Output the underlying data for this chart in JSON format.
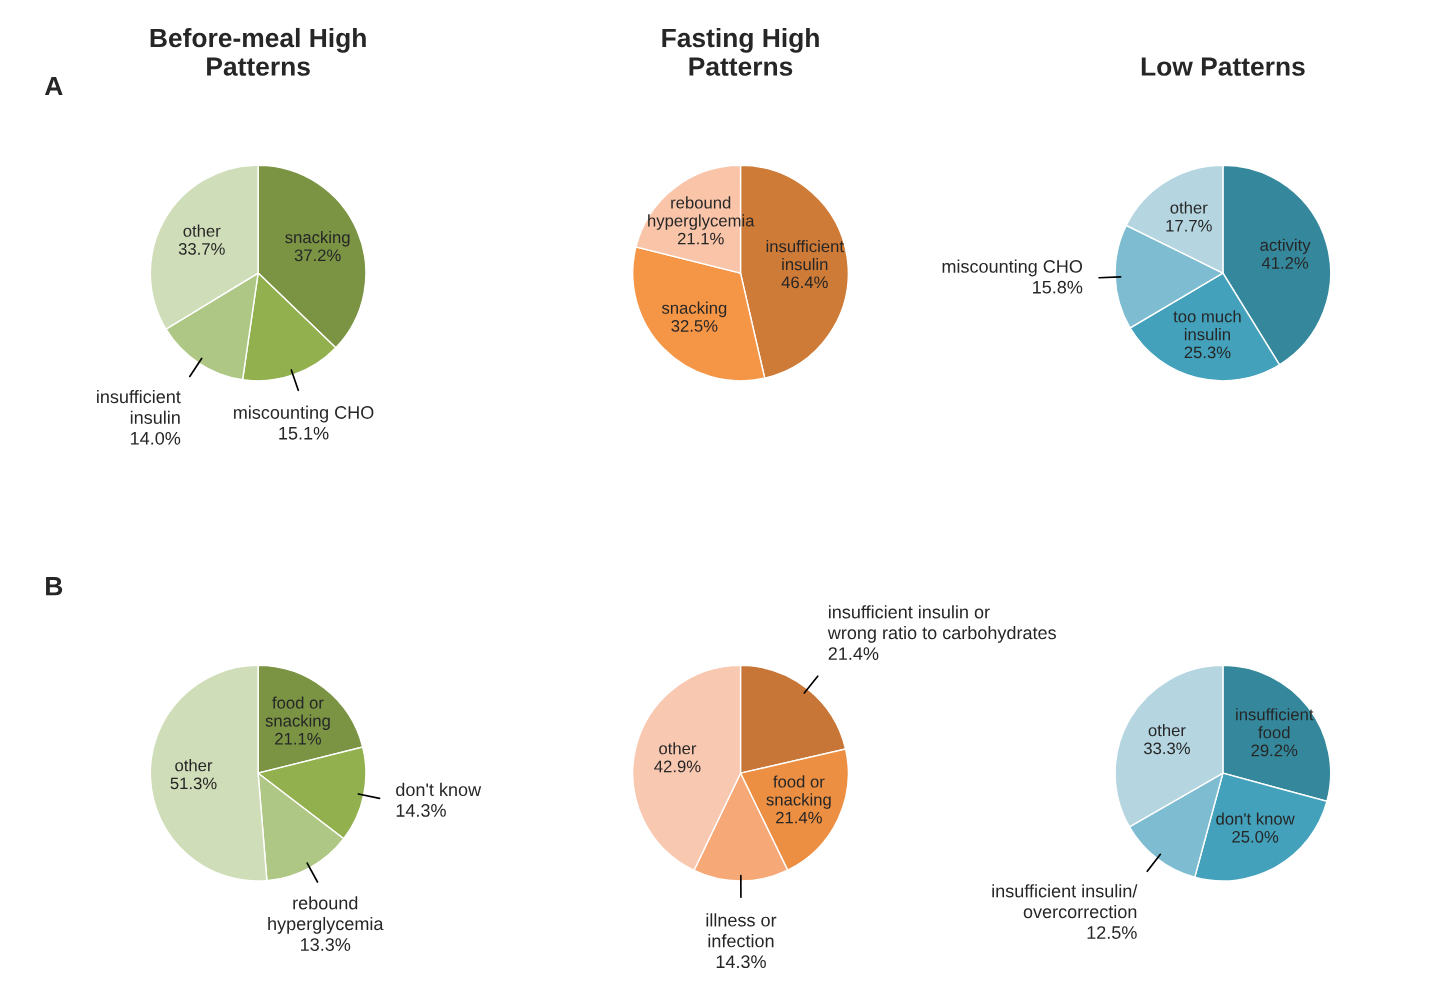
{
  "chart_data": [
    {
      "type": "pie",
      "title": "Before-meal High\nPatterns",
      "annotations": [
        "A"
      ],
      "categories": [
        "snacking",
        "miscounting CHO",
        "insufficient\ninsulin",
        "other"
      ],
      "values": [
        37.2,
        15.1,
        14.0,
        33.7
      ],
      "value_labels": [
        "37.2%",
        "15.1%",
        "14.0%",
        "33.7%"
      ],
      "colors": [
        "#7a9444",
        "#92b04e",
        "#afc785",
        "#d0ddb9"
      ]
    },
    {
      "type": "pie",
      "title": "Fasting High\nPatterns",
      "categories": [
        "insufficient\ninsulin",
        "snacking",
        "rebound\nhyperglycemia"
      ],
      "values": [
        46.4,
        32.5,
        21.1
      ],
      "value_labels": [
        "46.4%",
        "32.5%",
        "21.1%"
      ],
      "colors": [
        "#cf7b38",
        "#f59546",
        "#f9c4a8"
      ]
    },
    {
      "type": "pie",
      "title": "Low Patterns",
      "categories": [
        "activity",
        "too much\ninsulin",
        "miscounting CHO",
        "other"
      ],
      "values": [
        41.2,
        25.3,
        15.8,
        17.7
      ],
      "value_labels": [
        "41.2%",
        "25.3%",
        "15.8%",
        "17.7%"
      ],
      "colors": [
        "#35889c",
        "#43a1bb",
        "#7ebcd1",
        "#b5d6e1"
      ]
    },
    {
      "type": "pie",
      "annotations": [
        "B"
      ],
      "categories": [
        "food or\nsnacking",
        "don't know",
        "rebound\nhyperglycemia",
        "other"
      ],
      "values": [
        21.1,
        14.3,
        13.3,
        51.3
      ],
      "value_labels": [
        "21.1%",
        "14.3%",
        "13.3%",
        "51.3%"
      ],
      "colors": [
        "#7a9444",
        "#92b04e",
        "#afc785",
        "#d0ddb9"
      ]
    },
    {
      "type": "pie",
      "categories": [
        "insufficient insulin or\nwrong ratio to carbohydrates",
        "food or\nsnacking",
        "illness or\ninfection",
        "other"
      ],
      "values": [
        21.4,
        21.4,
        14.3,
        42.9
      ],
      "value_labels": [
        "21.4%",
        "21.4%",
        "14.3%",
        "42.9%"
      ],
      "colors": [
        "#c87637",
        "#ec8f42",
        "#f6a877",
        "#f9c8b1"
      ]
    },
    {
      "type": "pie",
      "categories": [
        "insufficient\nfood",
        "don't know",
        "insufficient insulin/\novercorrection",
        "other"
      ],
      "values": [
        29.2,
        25.0,
        12.5,
        33.3
      ],
      "value_labels": [
        "29.2%",
        "25.0%",
        "12.5%",
        "33.3%"
      ],
      "colors": [
        "#35889c",
        "#43a1bb",
        "#7ebcd1",
        "#b5d6e1"
      ]
    }
  ]
}
